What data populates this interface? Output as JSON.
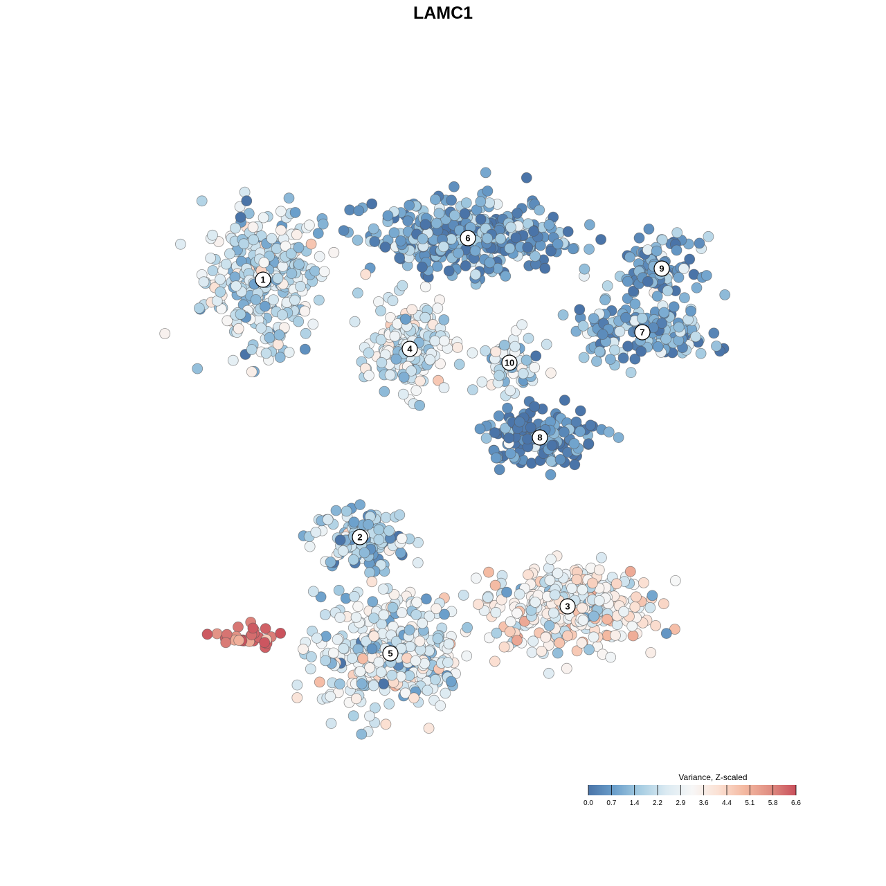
{
  "chart_data": {
    "type": "scatter",
    "title": "LAMC1",
    "xlabel": "",
    "ylabel": "",
    "grid": false,
    "legend_placement": "bottom-right",
    "colorbar": {
      "title": "Variance, Z-scaled",
      "ticks": [
        "0.0",
        "0.7",
        "1.4",
        "2.2",
        "2.9",
        "3.6",
        "4.4",
        "5.1",
        "5.8",
        "6.6"
      ],
      "range": [
        0.0,
        6.6
      ],
      "colors": [
        "#4a74a8",
        "#6b9fcb",
        "#a7cde2",
        "#dbeaf2",
        "#f7f7f7",
        "#fbe1d4",
        "#f4b9a1",
        "#e08e82",
        "#c94f5b"
      ]
    },
    "clusters": [
      {
        "label": "1",
        "x": -6.5,
        "y": 5.9,
        "mean_value": 2.2
      },
      {
        "label": "2",
        "x": -3.0,
        "y": -3.4,
        "mean_value": 1.6
      },
      {
        "label": "3",
        "x": 4.5,
        "y": -5.9,
        "mean_value": 3.3
      },
      {
        "label": "4",
        "x": -1.2,
        "y": 3.4,
        "mean_value": 2.4
      },
      {
        "label": "5",
        "x": -1.9,
        "y": -7.6,
        "mean_value": 2.5
      },
      {
        "label": "6",
        "x": 0.9,
        "y": 7.4,
        "mean_value": 0.9
      },
      {
        "label": "7",
        "x": 7.2,
        "y": 4.0,
        "mean_value": 1.0
      },
      {
        "label": "8",
        "x": 3.5,
        "y": 0.2,
        "mean_value": 0.3
      },
      {
        "label": "9",
        "x": 7.9,
        "y": 6.3,
        "mean_value": 0.9
      },
      {
        "label": "10",
        "x": 2.4,
        "y": 2.9,
        "mean_value": 2.0
      }
    ],
    "highlight_group": {
      "x": -7.0,
      "y": -7.0,
      "value": 6.6
    }
  }
}
